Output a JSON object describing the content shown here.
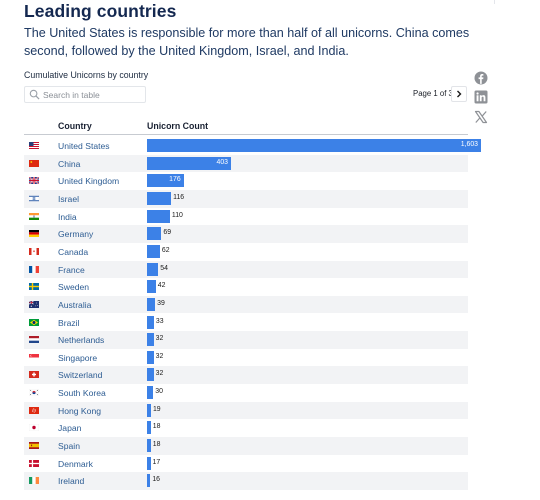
{
  "headline": "Leading countries",
  "subtitle": "The United States is responsible for more than half of all unicorns. China comes second, followed by the United Kingdom, Israel, and India.",
  "table": {
    "caption": "Cumulative Unicorns by country",
    "search_placeholder": "Search in table",
    "page_label": "Page 1 of 3",
    "columns": {
      "country": "Country",
      "count": "Unicorn Count"
    }
  },
  "share_icons": [
    "facebook-icon",
    "linkedin-icon",
    "x-icon"
  ],
  "colors": {
    "bar": "#3c81e7",
    "headline": "#142850",
    "link": "#2e5d93",
    "row_alt": "#f2f3f5"
  },
  "chart_data": {
    "type": "bar",
    "orientation": "horizontal",
    "categories": [
      "United States",
      "China",
      "United Kingdom",
      "Israel",
      "India",
      "Germany",
      "Canada",
      "France",
      "Sweden",
      "Australia",
      "Brazil",
      "Netherlands",
      "Singapore",
      "Switzerland",
      "South Korea",
      "Hong Kong",
      "Japan",
      "Spain",
      "Denmark",
      "Ireland"
    ],
    "values": [
      1603,
      403,
      176,
      116,
      110,
      69,
      62,
      54,
      42,
      39,
      33,
      32,
      32,
      32,
      30,
      19,
      18,
      18,
      17,
      16
    ],
    "value_labels": [
      "1,603",
      "403",
      "176",
      "116",
      "110",
      "69",
      "62",
      "54",
      "42",
      "39",
      "33",
      "32",
      "32",
      "32",
      "30",
      "19",
      "18",
      "18",
      "17",
      "16"
    ],
    "xlim": [
      0,
      1603
    ]
  }
}
